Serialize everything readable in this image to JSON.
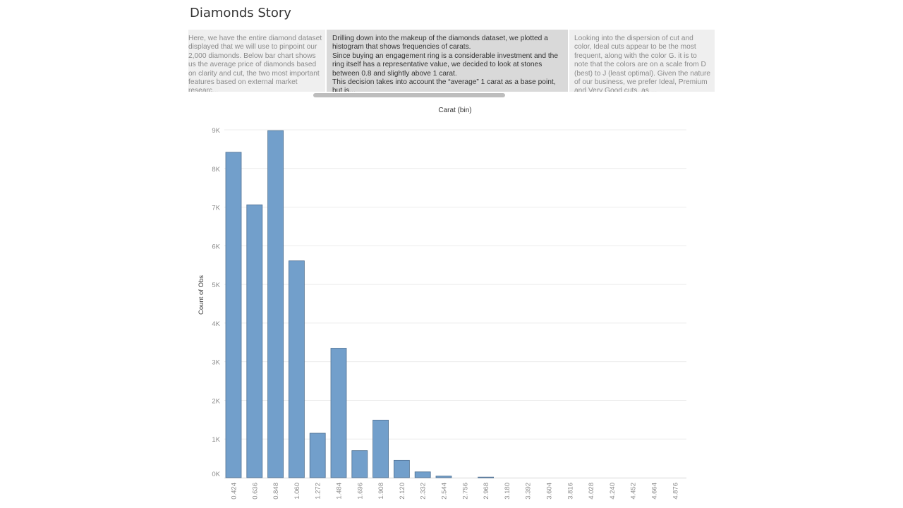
{
  "dashboard": {
    "title": "Diamonds Story"
  },
  "story_points": [
    {
      "text": "Here, we have the entire diamond dataset displayed that we will use to pinpoint our 2,000 diamonds. Below bar chart shows us the average price of diamonds based on clarity and cut, the two most important features based on external market researc..."
    },
    {
      "text": "Drilling down into the makeup of the diamonds dataset, we plotted a histogram that shows frequencies of carats.\nSince buying an engagement ring is a considerable investment and the ring itself has a representative value, we decided to look at stones between 0.8 and slightly above 1 carat.\nThis decision takes into account the “average” 1 carat as a base point, but is..."
    },
    {
      "text": "Looking into the dispersion of cut and color, Ideal cuts appear to be the most frequent, along with the color G. it is to note that the colors are on a scale from D (best) to J (least optimal). Given the nature of our business, we prefer Ideal, Premium and Very Good cuts, as ..."
    }
  ],
  "chart_data": {
    "type": "bar",
    "title": "Carat (bin)",
    "xlabel": "Carat (bin)",
    "ylabel": "Count of Obs",
    "categories": [
      "0.424",
      "0.636",
      "0.848",
      "1.060",
      "1.272",
      "1.484",
      "1.696",
      "1.908",
      "2.120",
      "2.332",
      "2.544",
      "2.756",
      "2.968",
      "3.180",
      "3.392",
      "3.604",
      "3.816",
      "4.028",
      "4.240",
      "4.452",
      "4.664",
      "4.876"
    ],
    "values": [
      8420,
      7060,
      8980,
      5610,
      1150,
      3350,
      700,
      1490,
      450,
      150,
      40,
      0,
      15,
      0,
      0,
      0,
      0,
      0,
      0,
      0,
      0,
      0
    ],
    "ylim": [
      0,
      9000
    ],
    "yticks": [
      {
        "value": 0,
        "label": "0K"
      },
      {
        "value": 1000,
        "label": "1K"
      },
      {
        "value": 2000,
        "label": "2K"
      },
      {
        "value": 3000,
        "label": "3K"
      },
      {
        "value": 4000,
        "label": "4K"
      },
      {
        "value": 5000,
        "label": "5K"
      },
      {
        "value": 6000,
        "label": "6K"
      },
      {
        "value": 7000,
        "label": "7K"
      },
      {
        "value": 8000,
        "label": "8K"
      },
      {
        "value": 9000,
        "label": "9K"
      }
    ],
    "grid": true,
    "bar_color": "#729fcb",
    "bar_stroke": "#4e6f91"
  }
}
